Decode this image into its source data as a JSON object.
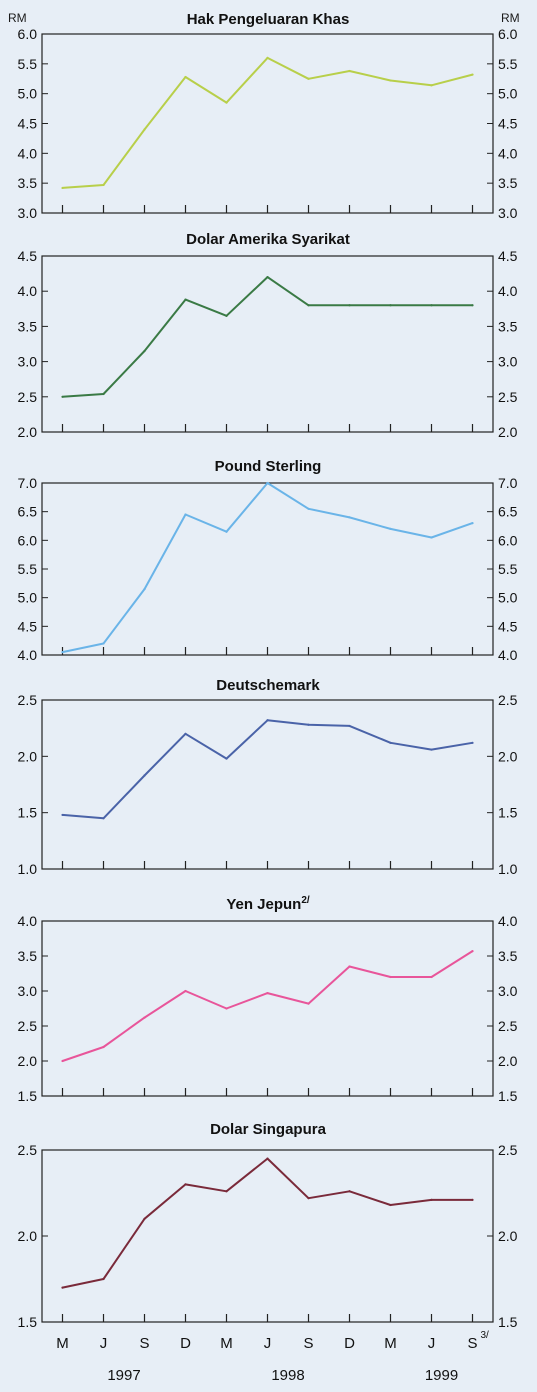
{
  "currency_label_left": "RM",
  "currency_label_right": "RM",
  "x_months": [
    "M",
    "J",
    "S",
    "D",
    "M",
    "J",
    "S",
    "D",
    "M",
    "J",
    "S"
  ],
  "x_years": [
    "1997",
    "1998",
    "1999"
  ],
  "footnote_last_month": "3/",
  "chart_data": [
    {
      "type": "line",
      "title": "Hak Pengeluaran Khas",
      "title_sup": "",
      "color": "#b8cf4a",
      "ylim": [
        3.0,
        6.0
      ],
      "yticks_left": [
        "3.0",
        "3.5",
        "4.0",
        "4.5",
        "5.0",
        "5.5",
        "6.0"
      ],
      "yticks_right": [
        "3.0",
        "3.5",
        "4.0",
        "4.5",
        "5.0",
        "5.5",
        "6.0"
      ],
      "x_index": [
        0,
        1,
        2,
        3,
        4,
        5,
        6,
        7,
        8,
        9,
        10
      ],
      "values": [
        3.42,
        3.47,
        4.4,
        5.28,
        4.85,
        5.6,
        5.25,
        5.38,
        5.22,
        5.14,
        5.32
      ]
    },
    {
      "type": "line",
      "title": "Dolar Amerika Syarikat",
      "title_sup": "",
      "color": "#3a7a45",
      "ylim": [
        2.0,
        4.5
      ],
      "yticks_left": [
        "2.0",
        "2.5",
        "3.0",
        "3.5",
        "4.0",
        "4.5"
      ],
      "yticks_right": [
        "2.0",
        "2.5",
        "3.0",
        "3.5",
        "4.0",
        "4.5"
      ],
      "x_index": [
        0,
        1,
        2,
        3,
        4,
        5,
        6,
        7,
        8,
        9,
        10
      ],
      "values": [
        2.5,
        2.54,
        3.15,
        3.88,
        3.65,
        4.2,
        3.8,
        3.8,
        3.8,
        3.8,
        3.8
      ]
    },
    {
      "type": "line",
      "title": "Pound Sterling",
      "title_sup": "",
      "color": "#6ab4e8",
      "ylim": [
        4.0,
        7.0
      ],
      "yticks_left": [
        "4.0",
        "4.5",
        "5.0",
        "5.5",
        "6.0",
        "6.5",
        "7.0"
      ],
      "yticks_right": [
        "4.0",
        "4.5",
        "5.0",
        "5.5",
        "6.0",
        "6.5",
        "7.0"
      ],
      "x_index": [
        0,
        1,
        2,
        3,
        4,
        5,
        6,
        7,
        8,
        9,
        10
      ],
      "values": [
        4.05,
        4.2,
        5.15,
        6.45,
        6.15,
        7.0,
        6.55,
        6.4,
        6.2,
        6.05,
        6.3
      ]
    },
    {
      "type": "line",
      "title": "Deutschemark",
      "title_sup": "",
      "color": "#4a63a8",
      "ylim": [
        1.0,
        2.5
      ],
      "yticks_left": [
        "1.0",
        "1.5",
        "2.0",
        "2.5"
      ],
      "yticks_right": [
        "1.0",
        "1.5",
        "2.0",
        "2.5"
      ],
      "x_index": [
        0,
        1,
        2,
        3,
        4,
        5,
        6,
        7,
        8,
        9,
        10
      ],
      "values": [
        1.48,
        1.45,
        1.83,
        2.2,
        1.98,
        2.32,
        2.28,
        2.27,
        2.12,
        2.06,
        2.12
      ]
    },
    {
      "type": "line",
      "title": "Yen Jepun",
      "title_sup": "2/",
      "color": "#e8559a",
      "ylim": [
        1.5,
        4.0
      ],
      "yticks_left": [
        "1.5",
        "2.0",
        "2.5",
        "3.0",
        "3.5",
        "4.0"
      ],
      "yticks_right": [
        "1.5",
        "2.0",
        "2.5",
        "3.0",
        "3.5",
        "4.0"
      ],
      "x_index": [
        0,
        1,
        2,
        3,
        4,
        5,
        6,
        7,
        8,
        9,
        10
      ],
      "values": [
        2.0,
        2.2,
        2.62,
        3.0,
        2.75,
        2.97,
        2.82,
        3.35,
        3.2,
        3.2,
        3.57
      ]
    },
    {
      "type": "line",
      "title": "Dolar Singapura",
      "title_sup": "",
      "color": "#7a2a3a",
      "ylim": [
        1.5,
        2.5
      ],
      "yticks_left": [
        "1.5",
        "2.0",
        "2.5"
      ],
      "yticks_right": [
        "1.5",
        "2.0",
        "2.5"
      ],
      "x_index": [
        0,
        1,
        2,
        3,
        4,
        5,
        6,
        7,
        8,
        9,
        10
      ],
      "values": [
        1.7,
        1.75,
        2.1,
        2.3,
        2.26,
        2.45,
        2.22,
        2.26,
        2.18,
        2.21,
        2.21
      ]
    }
  ]
}
